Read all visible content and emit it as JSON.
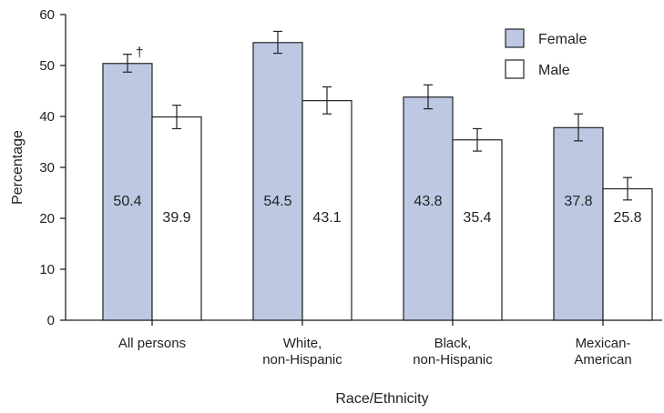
{
  "chart_data": {
    "type": "bar",
    "title": "",
    "xlabel": "Race/Ethnicity",
    "ylabel": "Percentage",
    "ylim": [
      0,
      60
    ],
    "yticks": [
      0,
      10,
      20,
      30,
      40,
      50,
      60
    ],
    "grid": false,
    "legend": "top-right",
    "categories": [
      [
        "All persons"
      ],
      [
        "White,",
        "non-Hispanic"
      ],
      [
        "Black,",
        "non-Hispanic"
      ],
      [
        "Mexican-",
        "American"
      ]
    ],
    "series": [
      {
        "name": "Female",
        "color": "#bdc8e3",
        "values": [
          50.4,
          54.5,
          43.8,
          37.8
        ],
        "error_low": [
          48.7,
          52.4,
          41.5,
          35.2
        ],
        "error_high": [
          52.2,
          56.7,
          46.2,
          40.5
        ]
      },
      {
        "name": "Male",
        "color": "#ffffff",
        "values": [
          39.9,
          43.1,
          35.4,
          25.8
        ],
        "error_low": [
          37.6,
          40.5,
          33.2,
          23.6
        ],
        "error_high": [
          42.2,
          45.8,
          37.6,
          28.0
        ]
      }
    ],
    "annotations": [
      {
        "text": "†",
        "series": 0,
        "category": 0
      }
    ]
  }
}
